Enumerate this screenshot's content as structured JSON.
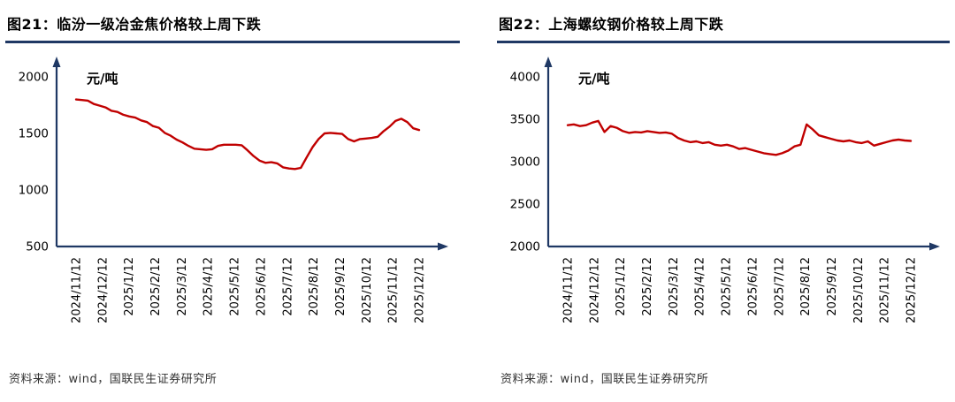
{
  "colors": {
    "axis": "#1F3864",
    "line": "#C00000",
    "title_rule": "#1F3864"
  },
  "panels": [
    {
      "title": "图21：临汾一级冶金焦价格较上周下跌",
      "source": "资料来源：wind，国联民生证券研究所",
      "chart_data": {
        "type": "line",
        "title": "临汾一级冶金焦价格较上周下跌",
        "xlabel": "",
        "ylabel": "元/吨",
        "unit_label": "元/吨",
        "ylim": [
          500,
          2000
        ],
        "yticks": [
          500,
          1000,
          1500,
          2000
        ],
        "grid": false,
        "legend": "none",
        "x_tick_labels": [
          "2024/11/12",
          "2024/12/12",
          "2025/1/12",
          "2025/2/12",
          "2025/3/12",
          "2025/4/12",
          "2025/5/12",
          "2025/6/12",
          "2025/7/12",
          "2025/8/12",
          "2025/9/12",
          "2025/10/12",
          "2025/11/12",
          "2025/12/12"
        ],
        "values": [
          1800,
          1795,
          1790,
          1760,
          1745,
          1730,
          1700,
          1690,
          1665,
          1650,
          1640,
          1615,
          1600,
          1565,
          1550,
          1505,
          1480,
          1445,
          1420,
          1390,
          1365,
          1360,
          1355,
          1360,
          1390,
          1400,
          1400,
          1400,
          1395,
          1350,
          1300,
          1260,
          1240,
          1245,
          1235,
          1200,
          1190,
          1185,
          1195,
          1290,
          1380,
          1450,
          1500,
          1505,
          1500,
          1495,
          1450,
          1430,
          1450,
          1455,
          1460,
          1470,
          1520,
          1560,
          1610,
          1630,
          1600,
          1545,
          1530
        ]
      }
    },
    {
      "title": "图22：上海螺纹钢价格较上周下跌",
      "source": "资料来源：wind，国联民生证券研究所",
      "chart_data": {
        "type": "line",
        "title": "上海螺纹钢价格较上周下跌",
        "xlabel": "",
        "ylabel": "元/吨",
        "unit_label": "元/吨",
        "ylim": [
          2000,
          4000
        ],
        "yticks": [
          2000,
          2500,
          3000,
          3500,
          4000
        ],
        "grid": false,
        "legend": "none",
        "x_tick_labels": [
          "2024/11/12",
          "2024/12/12",
          "2025/1/12",
          "2025/2/12",
          "2025/3/12",
          "2025/4/12",
          "2025/5/12",
          "2025/6/12",
          "2025/7/12",
          "2025/8/12",
          "2025/9/12",
          "2025/10/12",
          "2025/11/12",
          "2025/12/12"
        ],
        "values": [
          3430,
          3440,
          3420,
          3430,
          3460,
          3480,
          3350,
          3420,
          3400,
          3360,
          3340,
          3350,
          3345,
          3360,
          3350,
          3340,
          3345,
          3330,
          3280,
          3250,
          3230,
          3240,
          3220,
          3230,
          3200,
          3190,
          3200,
          3180,
          3150,
          3160,
          3140,
          3120,
          3100,
          3090,
          3080,
          3100,
          3130,
          3180,
          3200,
          3440,
          3380,
          3310,
          3290,
          3270,
          3250,
          3240,
          3250,
          3230,
          3220,
          3240,
          3190,
          3210,
          3230,
          3250,
          3260,
          3250,
          3245
        ]
      }
    }
  ]
}
